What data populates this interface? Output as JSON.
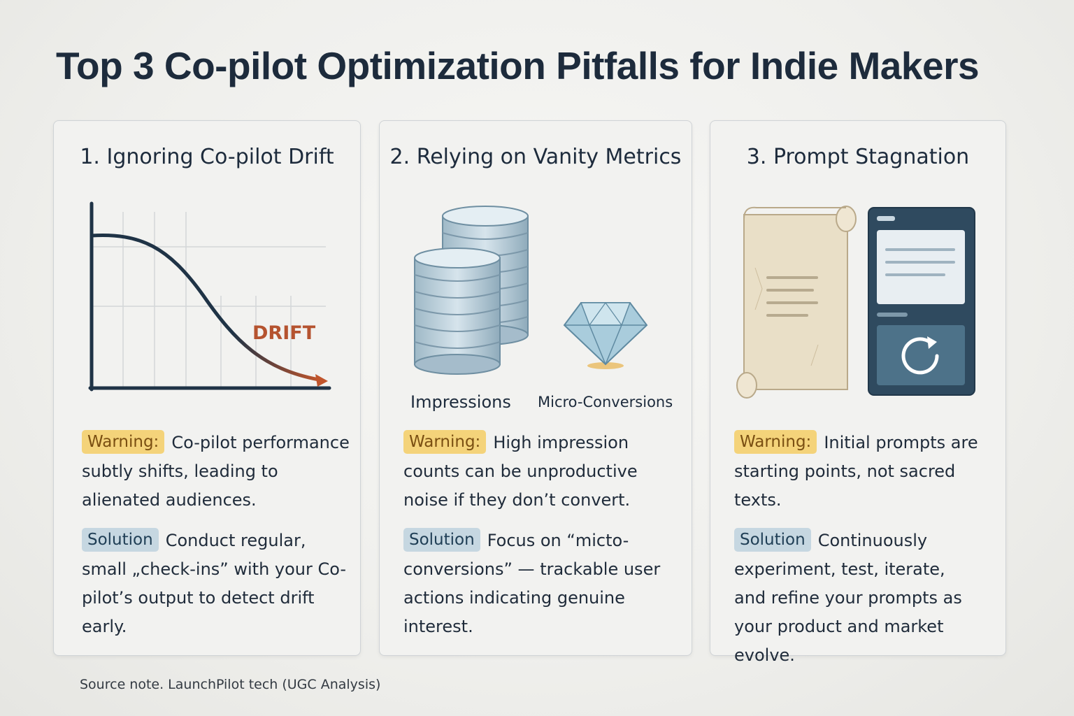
{
  "title": "Top 3 Co-pilot Optimization Pitfalls for Indie Makers",
  "cards": [
    {
      "title": "1. Ignoring Co-pilot Drift",
      "illustration_label": "DRIFT",
      "warning_badge": "Warning:",
      "warning_text": "Co-pilot performance subtly shifts, leading to alienated audiences.",
      "solution_badge": "Solution",
      "solution_text": "Conduct regular, small „check-ins” with your Co-pilot’s output to detect drift early."
    },
    {
      "title": "2. Relying on Vanity Metrics",
      "label_left": "Impressions",
      "label_right": "Micro-Conversions",
      "warning_badge": "Warning:",
      "warning_text": "High impression counts can be unproductive noise if they don’t convert.",
      "solution_badge": "Solution",
      "solution_text": "Focus on “micto-conversions” — trackable user actions indicating genuine interest."
    },
    {
      "title": "3. Prompt Stagnation",
      "warning_badge": "Warning:",
      "warning_text": "Initial prompts are starting points, not sacred texts.",
      "solution_badge": "Solution",
      "solution_text": "Continuously experiment, test, iterate, and refine your prompts as your product and market evolve."
    }
  ],
  "source_note": "Source note.  LaunchPilot tech (UGC Analysis)",
  "colors": {
    "title": "#1d2b3c",
    "warning_badge_bg": "#f4d37a",
    "solution_badge_bg": "#c6d7e1",
    "drift_accent": "#b5532f",
    "panel_dark": "#2c4a5e"
  },
  "icons": [
    "drift-curve-chart-icon",
    "coin-stack-icon",
    "diamond-icon",
    "scroll-icon",
    "refresh-panel-icon"
  ]
}
